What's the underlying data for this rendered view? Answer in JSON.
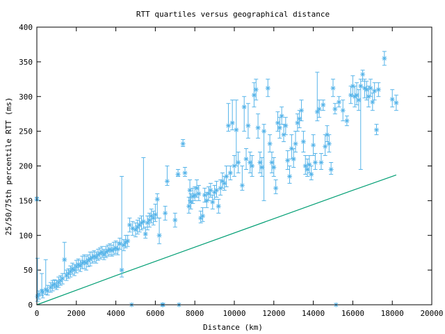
{
  "chart_data": {
    "type": "scatter",
    "title": "RTT quartiles versus geographical distance",
    "xlabel": "Distance (km)",
    "ylabel": "25/50/75th percentile RTT (ms)",
    "xlim": [
      0,
      20000
    ],
    "ylim": [
      0,
      400
    ],
    "xticks": [
      0,
      2000,
      4000,
      6000,
      8000,
      10000,
      12000,
      14000,
      16000,
      18000,
      20000
    ],
    "yticks": [
      0,
      50,
      100,
      150,
      200,
      250,
      300,
      350,
      400
    ],
    "grid": false,
    "legend": "none",
    "colors": {
      "points": "#56b4e9",
      "line": "#009e73",
      "axes": "#000000"
    },
    "series": [
      {
        "type": "errorbars",
        "points": [
          [
            0,
            152,
            150,
            155
          ],
          [
            30,
            12,
            5,
            67
          ],
          [
            100,
            15,
            8,
            20
          ],
          [
            250,
            20,
            13,
            45
          ],
          [
            300,
            18,
            10,
            22
          ],
          [
            450,
            22,
            15,
            65
          ],
          [
            550,
            20,
            14,
            28
          ],
          [
            700,
            25,
            18,
            32
          ],
          [
            800,
            28,
            20,
            35
          ],
          [
            900,
            30,
            24,
            36
          ],
          [
            1000,
            27,
            22,
            35
          ],
          [
            1100,
            32,
            25,
            40
          ],
          [
            1200,
            35,
            28,
            42
          ],
          [
            1300,
            38,
            30,
            45
          ],
          [
            1400,
            65,
            45,
            90
          ],
          [
            1500,
            42,
            35,
            50
          ],
          [
            1600,
            45,
            38,
            52
          ],
          [
            1700,
            48,
            40,
            56
          ],
          [
            1800,
            52,
            44,
            60
          ],
          [
            1900,
            50,
            42,
            58
          ],
          [
            2000,
            55,
            46,
            64
          ],
          [
            2100,
            58,
            50,
            66
          ],
          [
            2200,
            56,
            48,
            64
          ],
          [
            2300,
            60,
            52,
            70
          ],
          [
            2400,
            62,
            52,
            72
          ],
          [
            2500,
            60,
            50,
            70
          ],
          [
            2600,
            64,
            55,
            72
          ],
          [
            2700,
            66,
            56,
            76
          ],
          [
            2800,
            68,
            60,
            76
          ],
          [
            2900,
            70,
            62,
            78
          ],
          [
            3000,
            68,
            60,
            76
          ],
          [
            3100,
            72,
            64,
            80
          ],
          [
            3200,
            74,
            66,
            82
          ],
          [
            3300,
            76,
            68,
            84
          ],
          [
            3400,
            72,
            65,
            80
          ],
          [
            3500,
            76,
            68,
            84
          ],
          [
            3600,
            78,
            70,
            86
          ],
          [
            3700,
            80,
            72,
            88
          ],
          [
            3800,
            78,
            70,
            86
          ],
          [
            3900,
            80,
            72,
            90
          ],
          [
            4000,
            82,
            74,
            92
          ],
          [
            4100,
            80,
            72,
            90
          ],
          [
            4200,
            88,
            80,
            96
          ],
          [
            4300,
            50,
            40,
            185
          ],
          [
            4400,
            86,
            78,
            94
          ],
          [
            4500,
            90,
            82,
            100
          ],
          [
            4600,
            92,
            84,
            100
          ],
          [
            4700,
            115,
            105,
            125
          ],
          [
            4800,
            0,
            0,
            0
          ],
          [
            4850,
            110,
            100,
            120
          ],
          [
            5000,
            108,
            98,
            118
          ],
          [
            5100,
            112,
            102,
            122
          ],
          [
            5200,
            115,
            105,
            125
          ],
          [
            5300,
            118,
            108,
            128
          ],
          [
            5400,
            120,
            110,
            212
          ],
          [
            5500,
            102,
            96,
            112
          ],
          [
            5600,
            118,
            108,
            128
          ],
          [
            5700,
            122,
            112,
            132
          ],
          [
            5800,
            128,
            118,
            138
          ],
          [
            5900,
            125,
            115,
            135
          ],
          [
            6000,
            130,
            120,
            145
          ],
          [
            6100,
            152,
            125,
            160
          ],
          [
            6200,
            100,
            88,
            125
          ],
          [
            6350,
            0,
            0,
            0
          ],
          [
            6400,
            0,
            0,
            0
          ],
          [
            6500,
            132,
            122,
            142
          ],
          [
            6600,
            178,
            172,
            200
          ],
          [
            7000,
            122,
            112,
            132
          ],
          [
            7150,
            188,
            185,
            195
          ],
          [
            7200,
            0,
            0,
            0
          ],
          [
            7400,
            232,
            228,
            238
          ],
          [
            7500,
            190,
            185,
            198
          ],
          [
            7700,
            142,
            132,
            155
          ],
          [
            7750,
            165,
            150,
            180
          ],
          [
            7800,
            148,
            138,
            160
          ],
          [
            7900,
            156,
            146,
            168
          ],
          [
            8000,
            158,
            150,
            170
          ],
          [
            8100,
            168,
            155,
            180
          ],
          [
            8200,
            160,
            150,
            172
          ],
          [
            8300,
            125,
            118,
            135
          ],
          [
            8400,
            128,
            120,
            140
          ],
          [
            8500,
            158,
            148,
            168
          ],
          [
            8600,
            150,
            140,
            162
          ],
          [
            8700,
            160,
            150,
            170
          ],
          [
            8800,
            165,
            155,
            175
          ],
          [
            8900,
            148,
            138,
            158
          ],
          [
            9000,
            162,
            152,
            172
          ],
          [
            9100,
            165,
            155,
            178
          ],
          [
            9200,
            142,
            132,
            152
          ],
          [
            9300,
            168,
            158,
            180
          ],
          [
            9400,
            178,
            168,
            190
          ],
          [
            9500,
            175,
            165,
            185
          ],
          [
            9600,
            185,
            170,
            200
          ],
          [
            9700,
            258,
            250,
            290
          ],
          [
            9800,
            190,
            180,
            200
          ],
          [
            9900,
            262,
            252,
            295
          ],
          [
            10000,
            200,
            185,
            215
          ],
          [
            10100,
            252,
            200,
            295
          ],
          [
            10200,
            205,
            190,
            220
          ],
          [
            10400,
            172,
            165,
            200
          ],
          [
            10500,
            285,
            250,
            300
          ],
          [
            10600,
            210,
            195,
            225
          ],
          [
            10700,
            258,
            240,
            290
          ],
          [
            10800,
            205,
            190,
            220
          ],
          [
            10900,
            200,
            185,
            215
          ],
          [
            11000,
            302,
            285,
            320
          ],
          [
            11100,
            310,
            295,
            325
          ],
          [
            11200,
            255,
            240,
            275
          ],
          [
            11300,
            205,
            190,
            220
          ],
          [
            11400,
            198,
            185,
            212
          ],
          [
            11500,
            250,
            150,
            260
          ],
          [
            11700,
            312,
            300,
            325
          ],
          [
            11800,
            232,
            220,
            245
          ],
          [
            11900,
            205,
            190,
            220
          ],
          [
            12000,
            198,
            185,
            212
          ],
          [
            12100,
            168,
            160,
            180
          ],
          [
            12200,
            262,
            250,
            278
          ],
          [
            12300,
            255,
            240,
            270
          ],
          [
            12400,
            272,
            260,
            285
          ],
          [
            12500,
            245,
            235,
            260
          ],
          [
            12600,
            258,
            245,
            270
          ],
          [
            12700,
            208,
            195,
            222
          ],
          [
            12800,
            185,
            175,
            200
          ],
          [
            12900,
            225,
            210,
            245
          ],
          [
            13000,
            210,
            198,
            225
          ],
          [
            13100,
            232,
            220,
            250
          ],
          [
            13200,
            262,
            250,
            275
          ],
          [
            13300,
            268,
            255,
            280
          ],
          [
            13400,
            280,
            265,
            295
          ],
          [
            13500,
            235,
            220,
            250
          ],
          [
            13600,
            200,
            188,
            215
          ],
          [
            13700,
            195,
            185,
            210
          ],
          [
            13800,
            202,
            190,
            215
          ],
          [
            13900,
            188,
            180,
            200
          ],
          [
            14000,
            230,
            215,
            245
          ],
          [
            14100,
            205,
            195,
            218
          ],
          [
            14200,
            278,
            265,
            335
          ],
          [
            14300,
            282,
            270,
            295
          ],
          [
            14400,
            205,
            195,
            218
          ],
          [
            14500,
            288,
            280,
            295
          ],
          [
            14600,
            228,
            215,
            245
          ],
          [
            14700,
            245,
            235,
            258
          ],
          [
            14800,
            232,
            220,
            245
          ],
          [
            14900,
            195,
            188,
            205
          ],
          [
            15000,
            312,
            300,
            325
          ],
          [
            15100,
            282,
            275,
            290
          ],
          [
            15150,
            0,
            0,
            0
          ],
          [
            15300,
            292,
            285,
            300
          ],
          [
            15500,
            280,
            265,
            295
          ],
          [
            15700,
            265,
            258,
            272
          ],
          [
            15900,
            302,
            290,
            315
          ],
          [
            16000,
            315,
            300,
            330
          ],
          [
            16100,
            300,
            285,
            315
          ],
          [
            16200,
            302,
            288,
            320
          ],
          [
            16300,
            295,
            280,
            310
          ],
          [
            16400,
            315,
            195,
            325
          ],
          [
            16500,
            332,
            322,
            338
          ],
          [
            16600,
            312,
            298,
            325
          ],
          [
            16700,
            310,
            295,
            322
          ],
          [
            16800,
            300,
            285,
            315
          ],
          [
            16900,
            312,
            300,
            325
          ],
          [
            17000,
            292,
            280,
            305
          ],
          [
            17100,
            308,
            295,
            320
          ],
          [
            17200,
            252,
            245,
            260
          ],
          [
            17300,
            310,
            300,
            320
          ],
          [
            17600,
            355,
            345,
            365
          ],
          [
            18000,
            296,
            285,
            310
          ],
          [
            18200,
            291,
            280,
            302
          ]
        ]
      },
      {
        "type": "line",
        "points": [
          [
            0,
            0
          ],
          [
            4000,
            42
          ],
          [
            8000,
            83
          ],
          [
            12000,
            124
          ],
          [
            16000,
            165
          ],
          [
            18200,
            187
          ]
        ]
      }
    ]
  }
}
